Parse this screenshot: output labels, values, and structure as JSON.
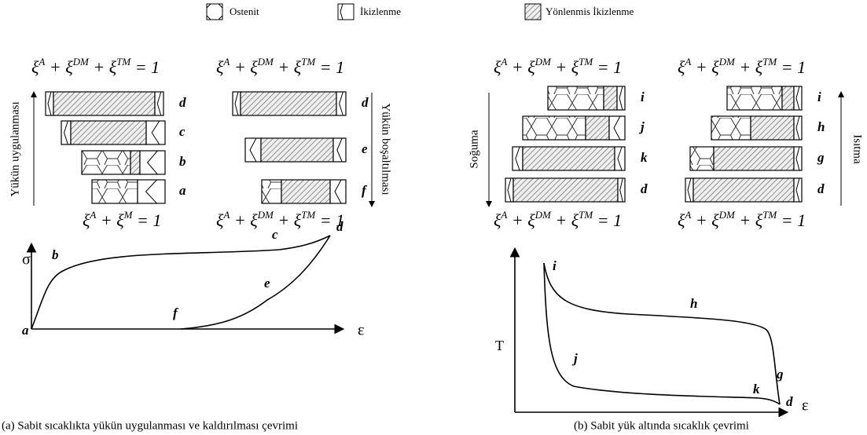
{
  "legend": [
    "Ostenit",
    "İkizlenme",
    "Yönlenmis İkizlenme"
  ],
  "equations": [
    [
      "ξ",
      "A",
      " + ξ",
      "DM",
      " + ξ",
      "TM",
      " = 1"
    ],
    [
      "ξ",
      "A",
      " + ξ",
      "DM",
      " + ξ",
      "TM",
      " = 1"
    ],
    [
      "ξ",
      "A",
      " + ξ",
      "DM",
      " + ξ",
      "TM",
      " = 1"
    ],
    [
      "ξ",
      "A",
      " + ξ",
      "DM",
      " + ξ",
      "TM",
      " = 1"
    ],
    [
      "ξ",
      "A",
      " + ξ",
      "M",
      " = 1"
    ],
    [
      "ξ",
      "A",
      " + ξ",
      "DM",
      " + ξ",
      "TM",
      " = 1"
    ],
    [
      "ξ",
      "A",
      " + ξ",
      "DM",
      " + ξ",
      "TM",
      " = 1"
    ],
    [
      "ξ",
      "A",
      " + ξ",
      "DM",
      " + ξ",
      "TM",
      " = 1"
    ]
  ],
  "panel_a": {
    "loading_label": "Yükün uygulanması",
    "loading_bars": [
      "d",
      "c",
      "b",
      "a"
    ],
    "unloading_label": "Yükün boşaltılması",
    "unloading_bars": [
      "d",
      "e",
      "f"
    ],
    "plot": {
      "y_label": "σ",
      "x_label": "ε",
      "points": [
        "a",
        "b",
        "c",
        "d",
        "e",
        "f"
      ]
    },
    "caption": "(a) Sabit sıcaklıkta yükün uygulanması ve kaldırılması çevrimi"
  },
  "panel_b": {
    "cooling_label": "Soğuma",
    "cooling_bars": [
      "i",
      "j",
      "k",
      "d"
    ],
    "heating_label": "Isıtma",
    "heating_bars": [
      "i",
      "h",
      "g",
      "d"
    ],
    "plot": {
      "y_label": "T",
      "x_label": "ε",
      "points": [
        "i",
        "h",
        "j",
        "g",
        "k",
        "d"
      ]
    },
    "caption": "(b) Sabit yük altında sıcaklık çevrimi"
  }
}
